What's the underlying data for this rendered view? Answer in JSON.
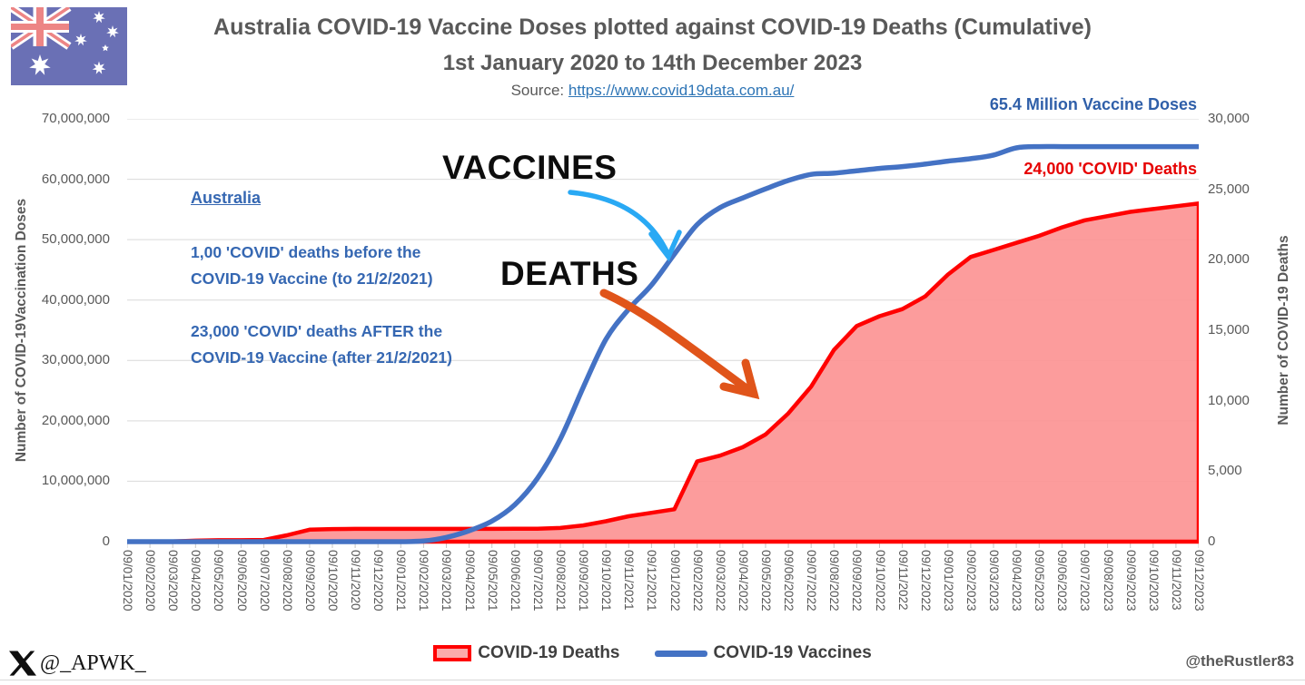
{
  "header": {
    "title_line1": "Australia COVID-19 Vaccine Doses plotted against COVID-19 Deaths (Cumulative)",
    "title_line2": "1st January 2020 to 14th December 2023",
    "source_prefix": "Source:",
    "source_url": "https://www.covid19data.com.au/"
  },
  "colors": {
    "vaccine_line": "#4472C4",
    "deaths_line": "#FF0000",
    "deaths_fill": "#FC9494",
    "arrow_blue": "#29A9F4",
    "arrow_orange": "#E0541A",
    "annotation_blue": "#3567B2",
    "gridline": "#D9D9D9",
    "text_gray": "#595959"
  },
  "chart_data": {
    "type": "line",
    "title": "Australia COVID-19 Vaccine Doses plotted against COVID-19 Deaths (Cumulative)",
    "categories": [
      "09/01/2020",
      "09/02/2020",
      "09/03/2020",
      "09/04/2020",
      "09/05/2020",
      "09/06/2020",
      "09/07/2020",
      "09/08/2020",
      "09/09/2020",
      "09/10/2020",
      "09/11/2020",
      "09/12/2020",
      "09/01/2021",
      "09/02/2021",
      "09/03/2021",
      "09/04/2021",
      "09/05/2021",
      "09/06/2021",
      "09/07/2021",
      "09/08/2021",
      "09/09/2021",
      "09/10/2021",
      "09/11/2021",
      "09/12/2021",
      "09/01/2022",
      "09/02/2022",
      "09/03/2022",
      "09/04/2022",
      "09/05/2022",
      "09/06/2022",
      "09/07/2022",
      "09/08/2022",
      "09/09/2022",
      "09/10/2022",
      "09/11/2022",
      "09/12/2022",
      "09/01/2023",
      "09/02/2023",
      "09/03/2023",
      "09/04/2023",
      "09/05/2023",
      "09/06/2023",
      "09/07/2023",
      "09/08/2023",
      "09/09/2023",
      "09/10/2023",
      "09/11/2023",
      "09/12/2023"
    ],
    "series": [
      {
        "name": "COVID-19 Vaccines",
        "axis": "left",
        "style": "line",
        "color": "#4472C4",
        "values": [
          0,
          0,
          0,
          0,
          0,
          0,
          0,
          0,
          0,
          0,
          0,
          0,
          0,
          100000,
          700000,
          1800000,
          3400000,
          6100000,
          10500000,
          17000000,
          25500000,
          33500000,
          38500000,
          42500000,
          47600000,
          52500000,
          55300000,
          56900000,
          58400000,
          59800000,
          60800000,
          61000000,
          61400000,
          61800000,
          62100000,
          62500000,
          63000000,
          63400000,
          64000000,
          65200000,
          65400000,
          65400000,
          65400000,
          65400000,
          65400000,
          65400000,
          65400000,
          65400000
        ]
      },
      {
        "name": "COVID-19 Deaths",
        "axis": "right",
        "style": "area",
        "color": "#FF0000",
        "fill": "#FC9494",
        "values": [
          0,
          0,
          20,
          70,
          100,
          103,
          120,
          450,
          850,
          895,
          905,
          908,
          909,
          909,
          910,
          910,
          910,
          911,
          915,
          970,
          1150,
          1450,
          1800,
          2050,
          2300,
          5700,
          6100,
          6700,
          7600,
          9100,
          11000,
          13600,
          15300,
          16000,
          16500,
          17400,
          18950,
          20200,
          20700,
          21200,
          21700,
          22300,
          22800,
          23100,
          23400,
          23600,
          23800,
          24000
        ]
      }
    ],
    "left_axis": {
      "title": "Number of COVID-19Vaccination Doses",
      "max": 70000000,
      "ticks": [
        "70,000,000",
        "60,000,000",
        "50,000,000",
        "40,000,000",
        "30,000,000",
        "20,000,000",
        "10,000,000",
        "0"
      ]
    },
    "right_axis": {
      "title": "Number of COVID-19 Deaths",
      "max": 30000,
      "ticks": [
        "30,000",
        "25,000",
        "20,000",
        "15,000",
        "10,000",
        "5,000",
        "0"
      ]
    },
    "grid": "horizontal",
    "legend_position": "bottom"
  },
  "annotations": {
    "country_label": "Australia",
    "before_line1": "1,00 'COVID' deaths before the",
    "before_line2": "COVID-19 Vaccine (to 21/2/2021)",
    "after_line1": "23,000 'COVID' deaths AFTER the",
    "after_line2": "COVID-19 Vaccine (after 21/2/2021)",
    "vaccines_callout": "VACCINES",
    "deaths_callout": "DEATHS",
    "doses_total": "65.4 Million Vaccine Doses",
    "deaths_total": "24,000 'COVID' Deaths"
  },
  "legend": {
    "deaths": "COVID-19 Deaths",
    "vaccines": "COVID-19 Vaccines"
  },
  "footer": {
    "left_handle": "@_APWK_",
    "right_handle": "@theRustler83"
  }
}
